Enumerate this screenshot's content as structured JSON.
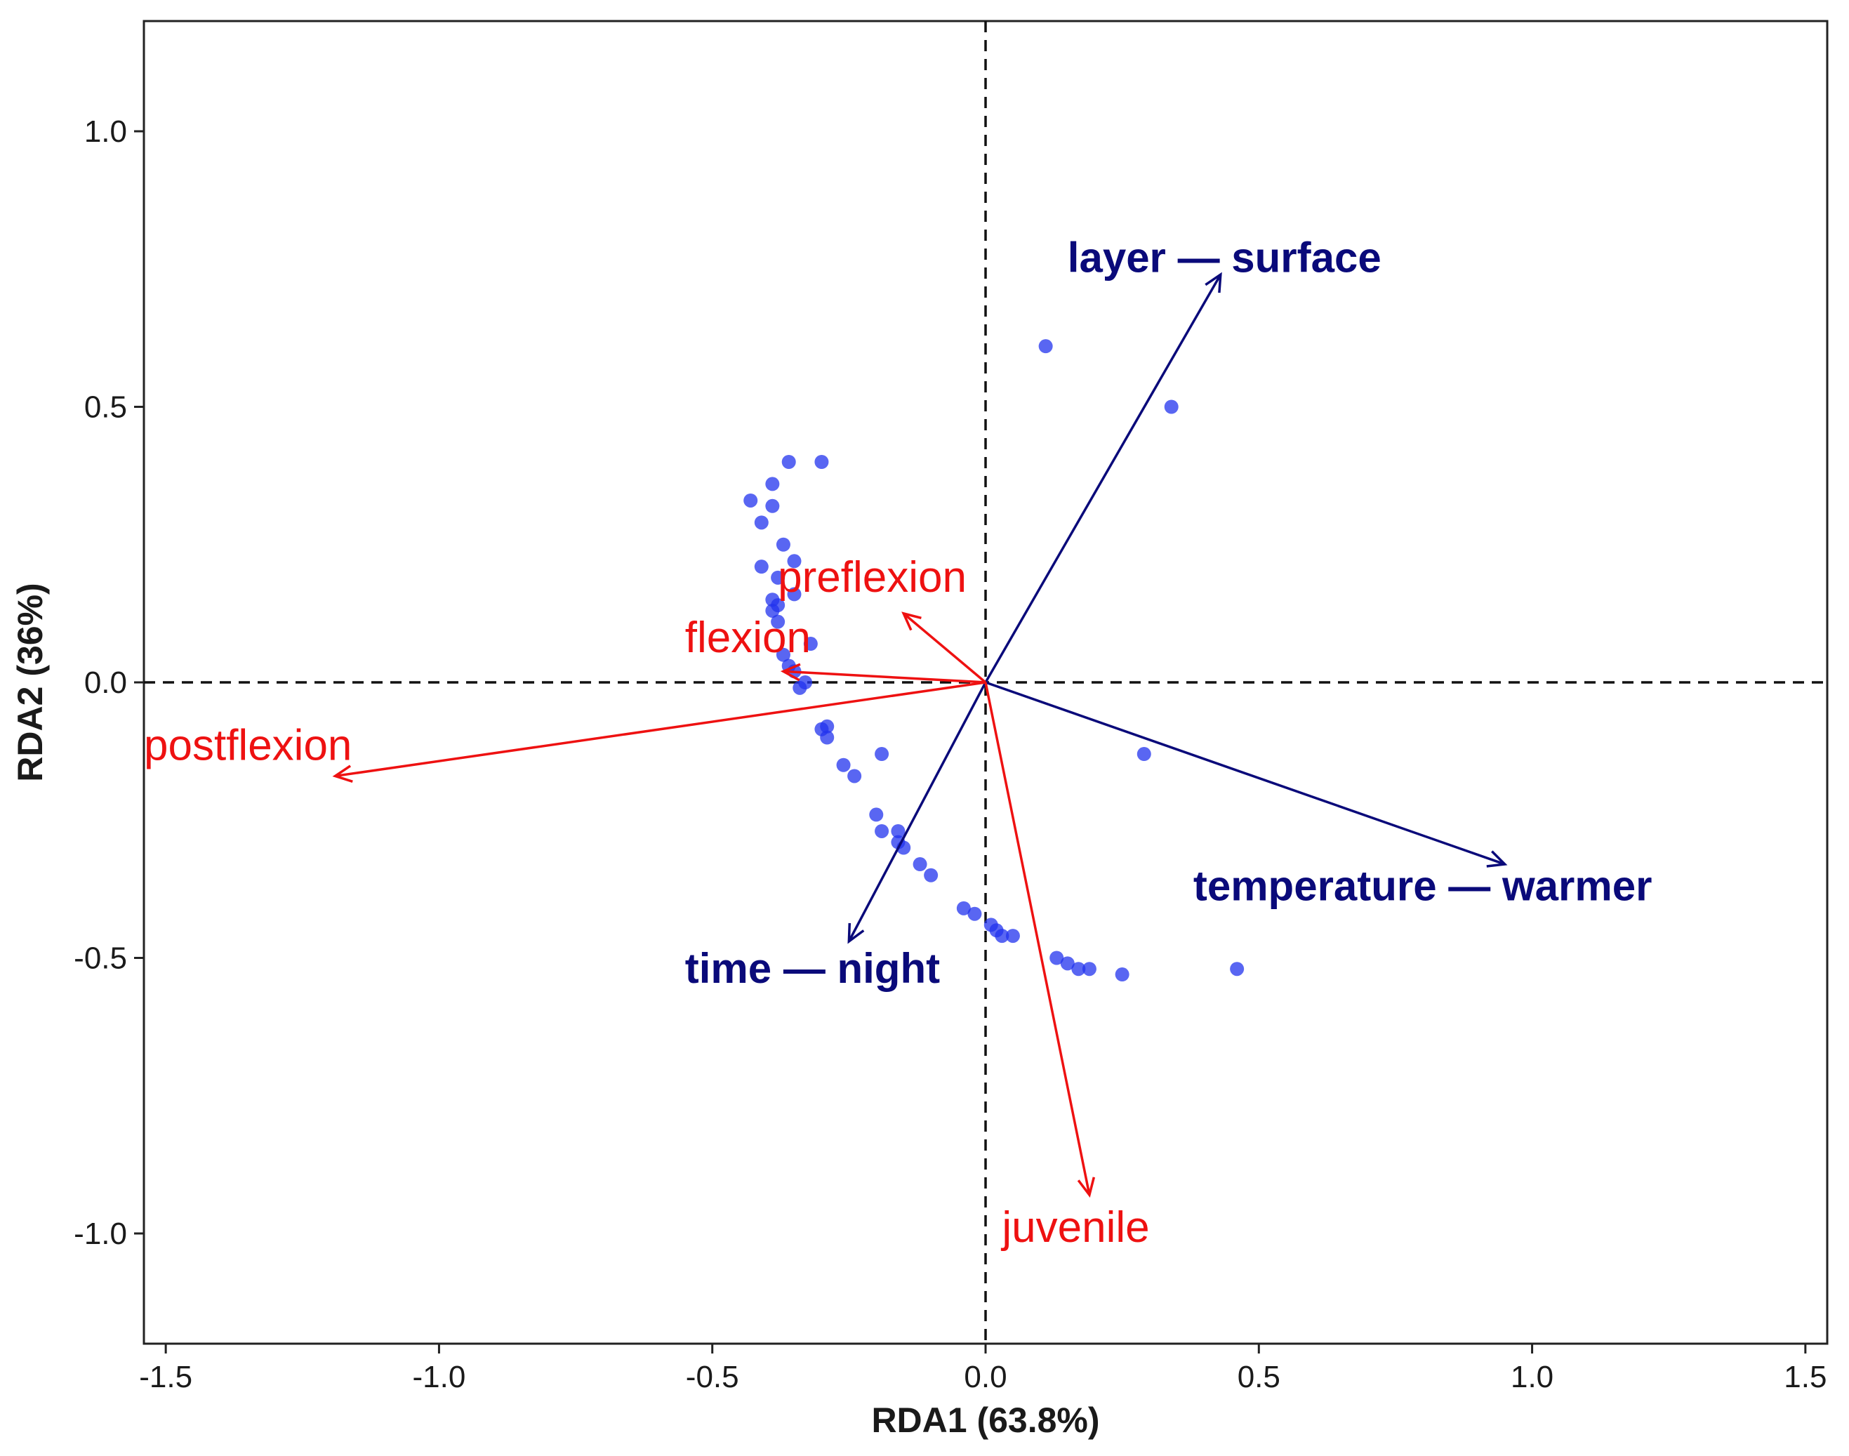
{
  "chart_data": {
    "type": "scatter",
    "subtype": "rda-biplot",
    "title": "",
    "xlabel": "RDA1 (63.8%)",
    "ylabel": "RDA2 (36%)",
    "xlim": [
      -1.54,
      1.54
    ],
    "ylim": [
      -1.2,
      1.2
    ],
    "xticks": [
      -1.5,
      -1.0,
      -0.5,
      0.0,
      0.5,
      1.0,
      1.5
    ],
    "xtick_labels": [
      "-1.5",
      "-1.0",
      "-0.5",
      "0.0",
      "0.5",
      "1.0",
      "1.5"
    ],
    "yticks": [
      -1.0,
      -0.5,
      0.0,
      0.5,
      1.0
    ],
    "ytick_labels": [
      "-1.0",
      "-0.5",
      "0.0",
      "0.5",
      "1.0"
    ],
    "reference_lines": {
      "x": 0,
      "y": 0,
      "style": "dashed"
    },
    "grid": false,
    "colors": {
      "points": "#2233ee",
      "env_arrows": "#0a0a7a",
      "species_arrows": "#ee1111"
    },
    "points": [
      {
        "x": 0.11,
        "y": 0.61
      },
      {
        "x": 0.34,
        "y": 0.5
      },
      {
        "x": -0.36,
        "y": 0.4
      },
      {
        "x": -0.3,
        "y": 0.4
      },
      {
        "x": -0.39,
        "y": 0.36
      },
      {
        "x": -0.43,
        "y": 0.33
      },
      {
        "x": -0.39,
        "y": 0.32
      },
      {
        "x": -0.41,
        "y": 0.29
      },
      {
        "x": -0.37,
        "y": 0.25
      },
      {
        "x": -0.35,
        "y": 0.22
      },
      {
        "x": -0.41,
        "y": 0.21
      },
      {
        "x": -0.38,
        "y": 0.19
      },
      {
        "x": -0.35,
        "y": 0.16
      },
      {
        "x": -0.39,
        "y": 0.15
      },
      {
        "x": -0.38,
        "y": 0.14
      },
      {
        "x": -0.39,
        "y": 0.13
      },
      {
        "x": -0.38,
        "y": 0.11
      },
      {
        "x": -0.32,
        "y": 0.07
      },
      {
        "x": -0.37,
        "y": 0.05
      },
      {
        "x": -0.36,
        "y": 0.03
      },
      {
        "x": -0.35,
        "y": 0.02
      },
      {
        "x": -0.33,
        "y": 0.0
      },
      {
        "x": -0.34,
        "y": -0.01
      },
      {
        "x": -0.29,
        "y": -0.08
      },
      {
        "x": -0.29,
        "y": -0.1
      },
      {
        "x": -0.3,
        "y": -0.085
      },
      {
        "x": -0.19,
        "y": -0.13
      },
      {
        "x": 0.29,
        "y": -0.13
      },
      {
        "x": -0.26,
        "y": -0.15
      },
      {
        "x": -0.24,
        "y": -0.17
      },
      {
        "x": -0.2,
        "y": -0.24
      },
      {
        "x": -0.19,
        "y": -0.27
      },
      {
        "x": -0.16,
        "y": -0.27
      },
      {
        "x": -0.16,
        "y": -0.29
      },
      {
        "x": -0.15,
        "y": -0.3
      },
      {
        "x": -0.12,
        "y": -0.33
      },
      {
        "x": -0.1,
        "y": -0.35
      },
      {
        "x": -0.04,
        "y": -0.41
      },
      {
        "x": -0.02,
        "y": -0.42
      },
      {
        "x": 0.01,
        "y": -0.44
      },
      {
        "x": 0.02,
        "y": -0.45
      },
      {
        "x": 0.03,
        "y": -0.46
      },
      {
        "x": 0.05,
        "y": -0.46
      },
      {
        "x": 0.13,
        "y": -0.5
      },
      {
        "x": 0.15,
        "y": -0.51
      },
      {
        "x": 0.17,
        "y": -0.52
      },
      {
        "x": 0.19,
        "y": -0.52
      },
      {
        "x": 0.25,
        "y": -0.53
      },
      {
        "x": 0.46,
        "y": -0.52
      }
    ],
    "env_arrows": [
      {
        "name": "layer — surface",
        "x": 0.43,
        "y": 0.74,
        "label_x": 0.15,
        "label_y": 0.77,
        "anchor": "start"
      },
      {
        "name": "temperature — warmer",
        "x": 0.95,
        "y": -0.33,
        "label_x": 0.38,
        "label_y": -0.37,
        "anchor": "start"
      },
      {
        "name": "time — night",
        "x": -0.25,
        "y": -0.47,
        "label_x": -0.55,
        "label_y": -0.52,
        "anchor": "start"
      }
    ],
    "species_arrows": [
      {
        "name": "preflexion",
        "x": -0.15,
        "y": 0.125,
        "label_x": -0.38,
        "label_y": 0.19,
        "anchor": "start"
      },
      {
        "name": "flexion",
        "x": -0.37,
        "y": 0.02,
        "label_x": -0.55,
        "label_y": 0.08,
        "anchor": "start"
      },
      {
        "name": "postflexion",
        "x": -1.19,
        "y": -0.17,
        "label_x": -1.54,
        "label_y": -0.115,
        "anchor": "start"
      },
      {
        "name": "juvenile",
        "x": 0.19,
        "y": -0.93,
        "label_x": 0.03,
        "label_y": -0.99,
        "anchor": "start"
      }
    ]
  }
}
